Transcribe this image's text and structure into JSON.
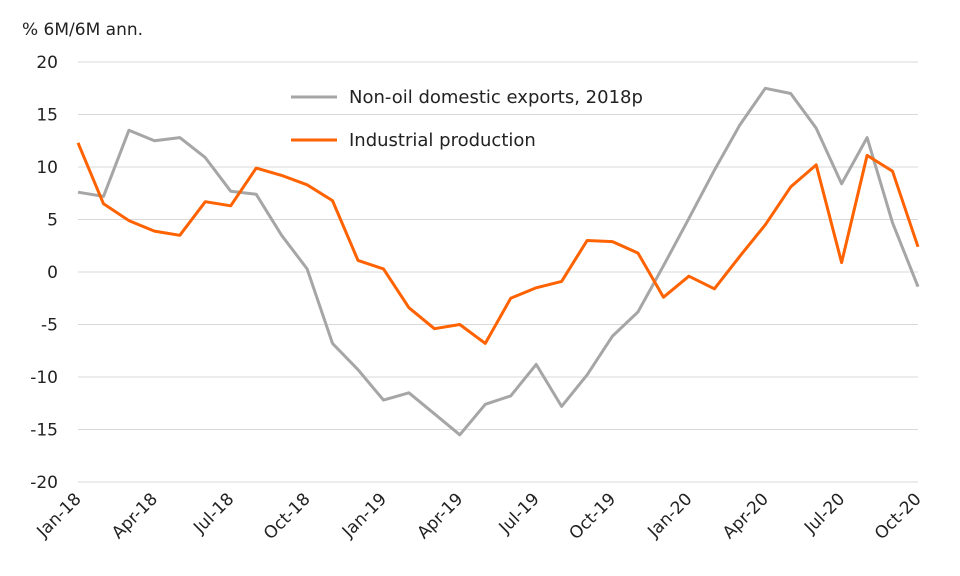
{
  "chart_data": {
    "type": "line",
    "ylabel": "% 6M/6M ann.",
    "ylim": [
      -20,
      20
    ],
    "yticks": [
      20,
      15,
      10,
      5,
      0,
      -5,
      -10,
      -15,
      -20
    ],
    "ytick_labels": [
      "20",
      "15",
      "10",
      "5",
      "0",
      "-5",
      "-10",
      "-15",
      "-20"
    ],
    "x": [
      "Jan-18",
      "Feb-18",
      "Mar-18",
      "Apr-18",
      "May-18",
      "Jun-18",
      "Jul-18",
      "Aug-18",
      "Sep-18",
      "Oct-18",
      "Nov-18",
      "Dec-18",
      "Jan-19",
      "Feb-19",
      "Mar-19",
      "Apr-19",
      "May-19",
      "Jun-19",
      "Jul-19",
      "Aug-19",
      "Sep-19",
      "Oct-19",
      "Nov-19",
      "Dec-19",
      "Jan-20",
      "Feb-20",
      "Mar-20",
      "Apr-20",
      "May-20",
      "Jun-20",
      "Jul-20",
      "Aug-20",
      "Sep-20",
      "Oct-20"
    ],
    "xtick_labels": [
      "Jan-18",
      "Apr-18",
      "Jul-18",
      "Oct-18",
      "Jan-19",
      "Apr-19",
      "Jul-19",
      "Oct-19",
      "Jan-20",
      "Apr-20",
      "Jul-20",
      "Oct-20"
    ],
    "grid": true,
    "legend_position": "top-center",
    "series": [
      {
        "name": "Non-oil domestic exports, 2018p",
        "color": "#a6a6a6",
        "values": [
          7.6,
          7.2,
          13.5,
          12.5,
          12.8,
          10.9,
          7.7,
          7.4,
          3.5,
          0.3,
          -6.8,
          -9.3,
          -12.2,
          -11.5,
          -13.5,
          -15.5,
          -12.6,
          -11.8,
          -8.8,
          -12.8,
          -9.8,
          -6.1,
          -3.8,
          0.6,
          5.1,
          9.7,
          14.0,
          17.5,
          17.0,
          13.7,
          8.4,
          12.8,
          4.7,
          -1.4
        ]
      },
      {
        "name": "Industrial production",
        "color": "#ff6200",
        "values": [
          12.3,
          6.5,
          4.9,
          3.9,
          3.5,
          6.7,
          6.3,
          9.9,
          9.2,
          8.3,
          6.8,
          1.1,
          0.3,
          -3.4,
          -5.4,
          -5.0,
          -6.8,
          -2.5,
          -1.5,
          -0.9,
          3.0,
          2.9,
          1.8,
          -2.4,
          -0.4,
          -1.6,
          1.5,
          4.5,
          8.1,
          10.2,
          0.9,
          11.1,
          9.6,
          2.4
        ]
      }
    ]
  }
}
